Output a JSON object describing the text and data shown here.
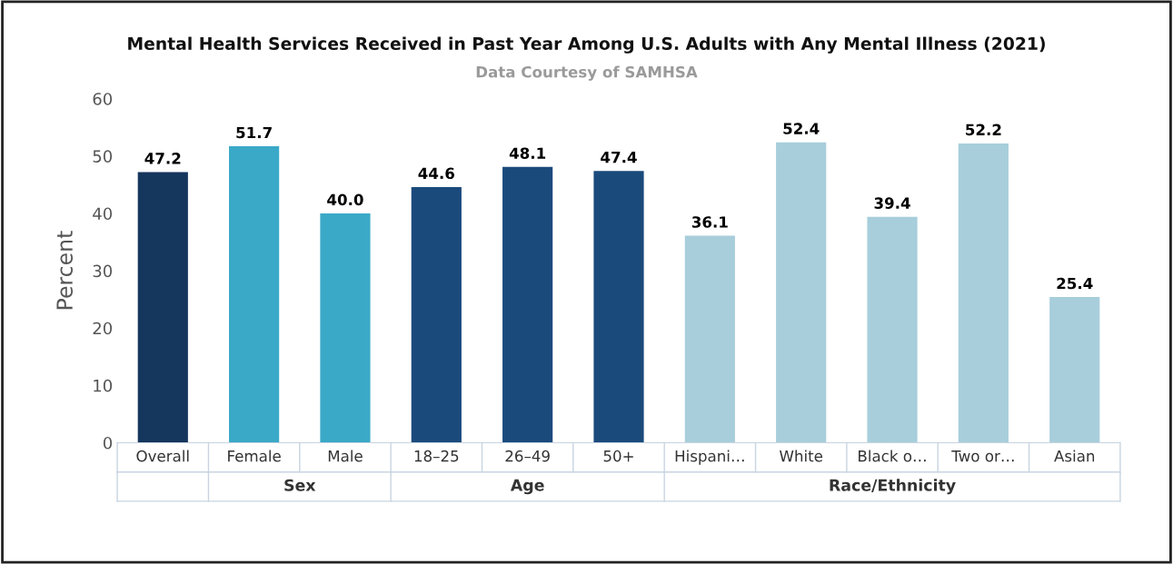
{
  "chart_data": {
    "type": "bar",
    "title": "Mental Health Services Received in Past Year Among U.S. Adults with Any Mental Illness (2021)",
    "subtitle": "Data Courtesy of SAMHSA",
    "ylabel": "Percent",
    "categories": [
      "Overall",
      "Female",
      "Male",
      "18–25",
      "26–49",
      "50+",
      "Hispani…",
      "White",
      "Black o…",
      "Two or…",
      "Asian"
    ],
    "values": [
      47.2,
      51.7,
      40.0,
      44.6,
      48.1,
      47.4,
      36.1,
      52.4,
      39.4,
      52.2,
      25.4
    ],
    "value_labels": [
      "47.2",
      "51.7",
      "40.0",
      "44.6",
      "48.1",
      "47.4",
      "36.1",
      "52.4",
      "39.4",
      "52.2",
      "25.4"
    ],
    "colors": [
      "#15365d",
      "#3aa9c7",
      "#3aa9c7",
      "#1a4a7c",
      "#1a4a7c",
      "#1a4a7c",
      "#a8cedb",
      "#a8cedb",
      "#a8cedb",
      "#a8cedb",
      "#a8cedb"
    ],
    "annotations": [
      "Sex",
      "Age",
      "Race/Ethnicity"
    ],
    "ylim": [
      0,
      60
    ],
    "yticks": [
      0,
      10,
      20,
      30,
      40,
      50,
      60
    ],
    "grid": false,
    "legend": false
  }
}
